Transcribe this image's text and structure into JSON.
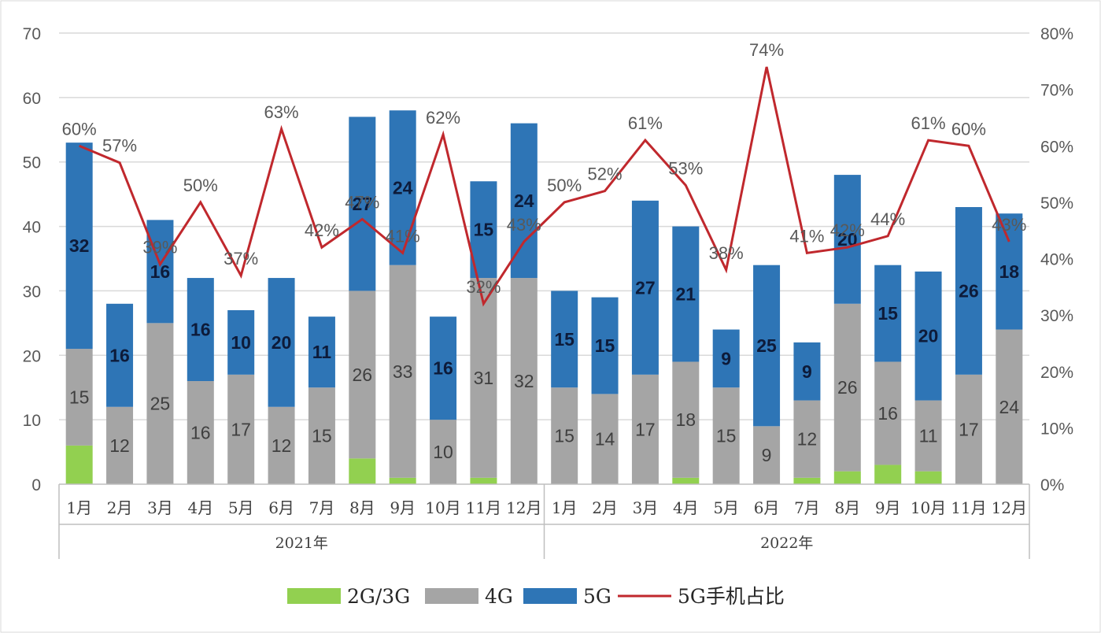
{
  "chart_data": {
    "type": "bar",
    "stacked": true,
    "secondary_line": true,
    "categories": [
      "1月",
      "2月",
      "3月",
      "4月",
      "5月",
      "6月",
      "7月",
      "8月",
      "9月",
      "10月",
      "11月",
      "12月",
      "1月",
      "2月",
      "3月",
      "4月",
      "5月",
      "6月",
      "7月",
      "8月",
      "9月",
      "10月",
      "11月",
      "12月"
    ],
    "category_groups": [
      {
        "label": "2021年",
        "count": 12
      },
      {
        "label": "2022年",
        "count": 12
      }
    ],
    "series": [
      {
        "name": "2G/3G",
        "type": "bar",
        "axis": "left",
        "color": "#92d050",
        "values": [
          6,
          0,
          0,
          0,
          0,
          0,
          0,
          4,
          1,
          0,
          1,
          0,
          0,
          0,
          0,
          1,
          0,
          0,
          1,
          2,
          3,
          2,
          0,
          0
        ]
      },
      {
        "name": "4G",
        "type": "bar",
        "axis": "left",
        "color": "#a5a5a5",
        "values": [
          15,
          12,
          25,
          16,
          17,
          12,
          15,
          26,
          33,
          10,
          31,
          32,
          15,
          14,
          17,
          18,
          15,
          9,
          12,
          26,
          16,
          11,
          17,
          24
        ]
      },
      {
        "name": "5G",
        "type": "bar",
        "axis": "left",
        "color": "#2e75b6",
        "values": [
          32,
          16,
          16,
          16,
          10,
          20,
          11,
          27,
          24,
          16,
          15,
          24,
          15,
          15,
          27,
          21,
          9,
          25,
          9,
          20,
          15,
          20,
          26,
          18
        ]
      },
      {
        "name": "5G手机占比",
        "type": "line",
        "axis": "right",
        "color": "#c0282d",
        "values": [
          60,
          57,
          39,
          50,
          37,
          63,
          42,
          47,
          41,
          62,
          32,
          43,
          50,
          52,
          61,
          53,
          38,
          74,
          41,
          42,
          44,
          61,
          60,
          43
        ]
      }
    ],
    "data_labels": {
      "4G": [
        "15",
        "12",
        "25",
        "16",
        "17",
        "12",
        "15",
        "26",
        "33",
        "10",
        "31",
        "32",
        "15",
        "14",
        "17",
        "18",
        "15",
        "9",
        "12",
        "26",
        "16",
        "11",
        "17",
        "24"
      ],
      "5G": [
        "32",
        "16",
        "16",
        "16",
        "10",
        "20",
        "11",
        "27",
        "24",
        "16",
        "15",
        "24",
        "15",
        "15",
        "27",
        "21",
        "9",
        "25",
        "9",
        "20",
        "15",
        "20",
        "26",
        "18"
      ],
      "5G手机占比": [
        "60%",
        "57%",
        "39%",
        "50%",
        "37%",
        "63%",
        "42%",
        "47%",
        "41%",
        "62%",
        "32%",
        "43%",
        "50%",
        "52%",
        "61%",
        "53%",
        "38%",
        "74%",
        "41%",
        "42%",
        "44%",
        "61%",
        "60%",
        "43%"
      ]
    },
    "y_left": {
      "ticks": [
        "0",
        "10",
        "20",
        "30",
        "40",
        "50",
        "60",
        "70"
      ],
      "range": [
        0,
        70
      ]
    },
    "y_right": {
      "ticks": [
        "0%",
        "10%",
        "20%",
        "30%",
        "40%",
        "50%",
        "60%",
        "70%",
        "80%"
      ],
      "range": [
        0,
        80
      ]
    },
    "grid": true,
    "legend": {
      "placement": "bottom",
      "items": [
        "2G/3G",
        "4G",
        "5G",
        "5G手机占比"
      ]
    }
  }
}
